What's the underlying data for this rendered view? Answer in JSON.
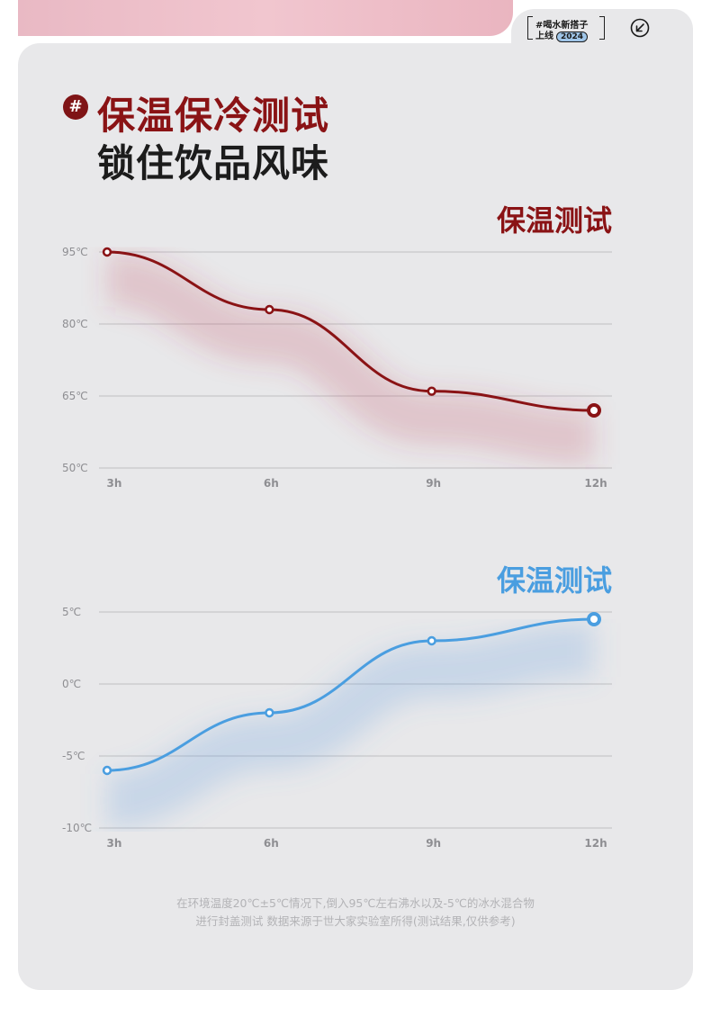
{
  "badge": {
    "line1": "#喝水新搭子",
    "line2": "上线",
    "year": "2024"
  },
  "header": {
    "icon": "#",
    "title_line1": "保温保冷测试",
    "title_line2": "锁住饮品风味"
  },
  "colors": {
    "hot": "#8a1315",
    "cold": "#4a9ee0",
    "grid": "#c7c7ca",
    "tick": "#8e8e92"
  },
  "chart_data": [
    {
      "type": "line",
      "title": "保温测试",
      "categories": [
        "3h",
        "6h",
        "9h",
        "12h"
      ],
      "series": [
        {
          "values": [
            95,
            83,
            66,
            62
          ]
        }
      ],
      "ylim": [
        50,
        95
      ],
      "yticks": [
        "95℃",
        "80℃",
        "65℃",
        "50℃"
      ],
      "ytick_values": [
        95,
        80,
        65,
        50
      ],
      "grid": true
    },
    {
      "type": "line",
      "title": "保温测试",
      "categories": [
        "3h",
        "6h",
        "9h",
        "12h"
      ],
      "series": [
        {
          "values": [
            -6,
            -2,
            3,
            4.5
          ]
        }
      ],
      "ylim": [
        -10,
        5
      ],
      "yticks": [
        "5℃",
        "0℃",
        "-5℃",
        "-10℃"
      ],
      "ytick_values": [
        5,
        0,
        -5,
        -10
      ],
      "grid": true
    }
  ],
  "footnote": {
    "line1": "在环境温度20℃±5℃情况下,倒入95℃左右沸水以及-5℃的冰水混合物",
    "line2": "进行封盖测试 数据来源于世大家实验室所得(测试结果,仅供参考)"
  }
}
